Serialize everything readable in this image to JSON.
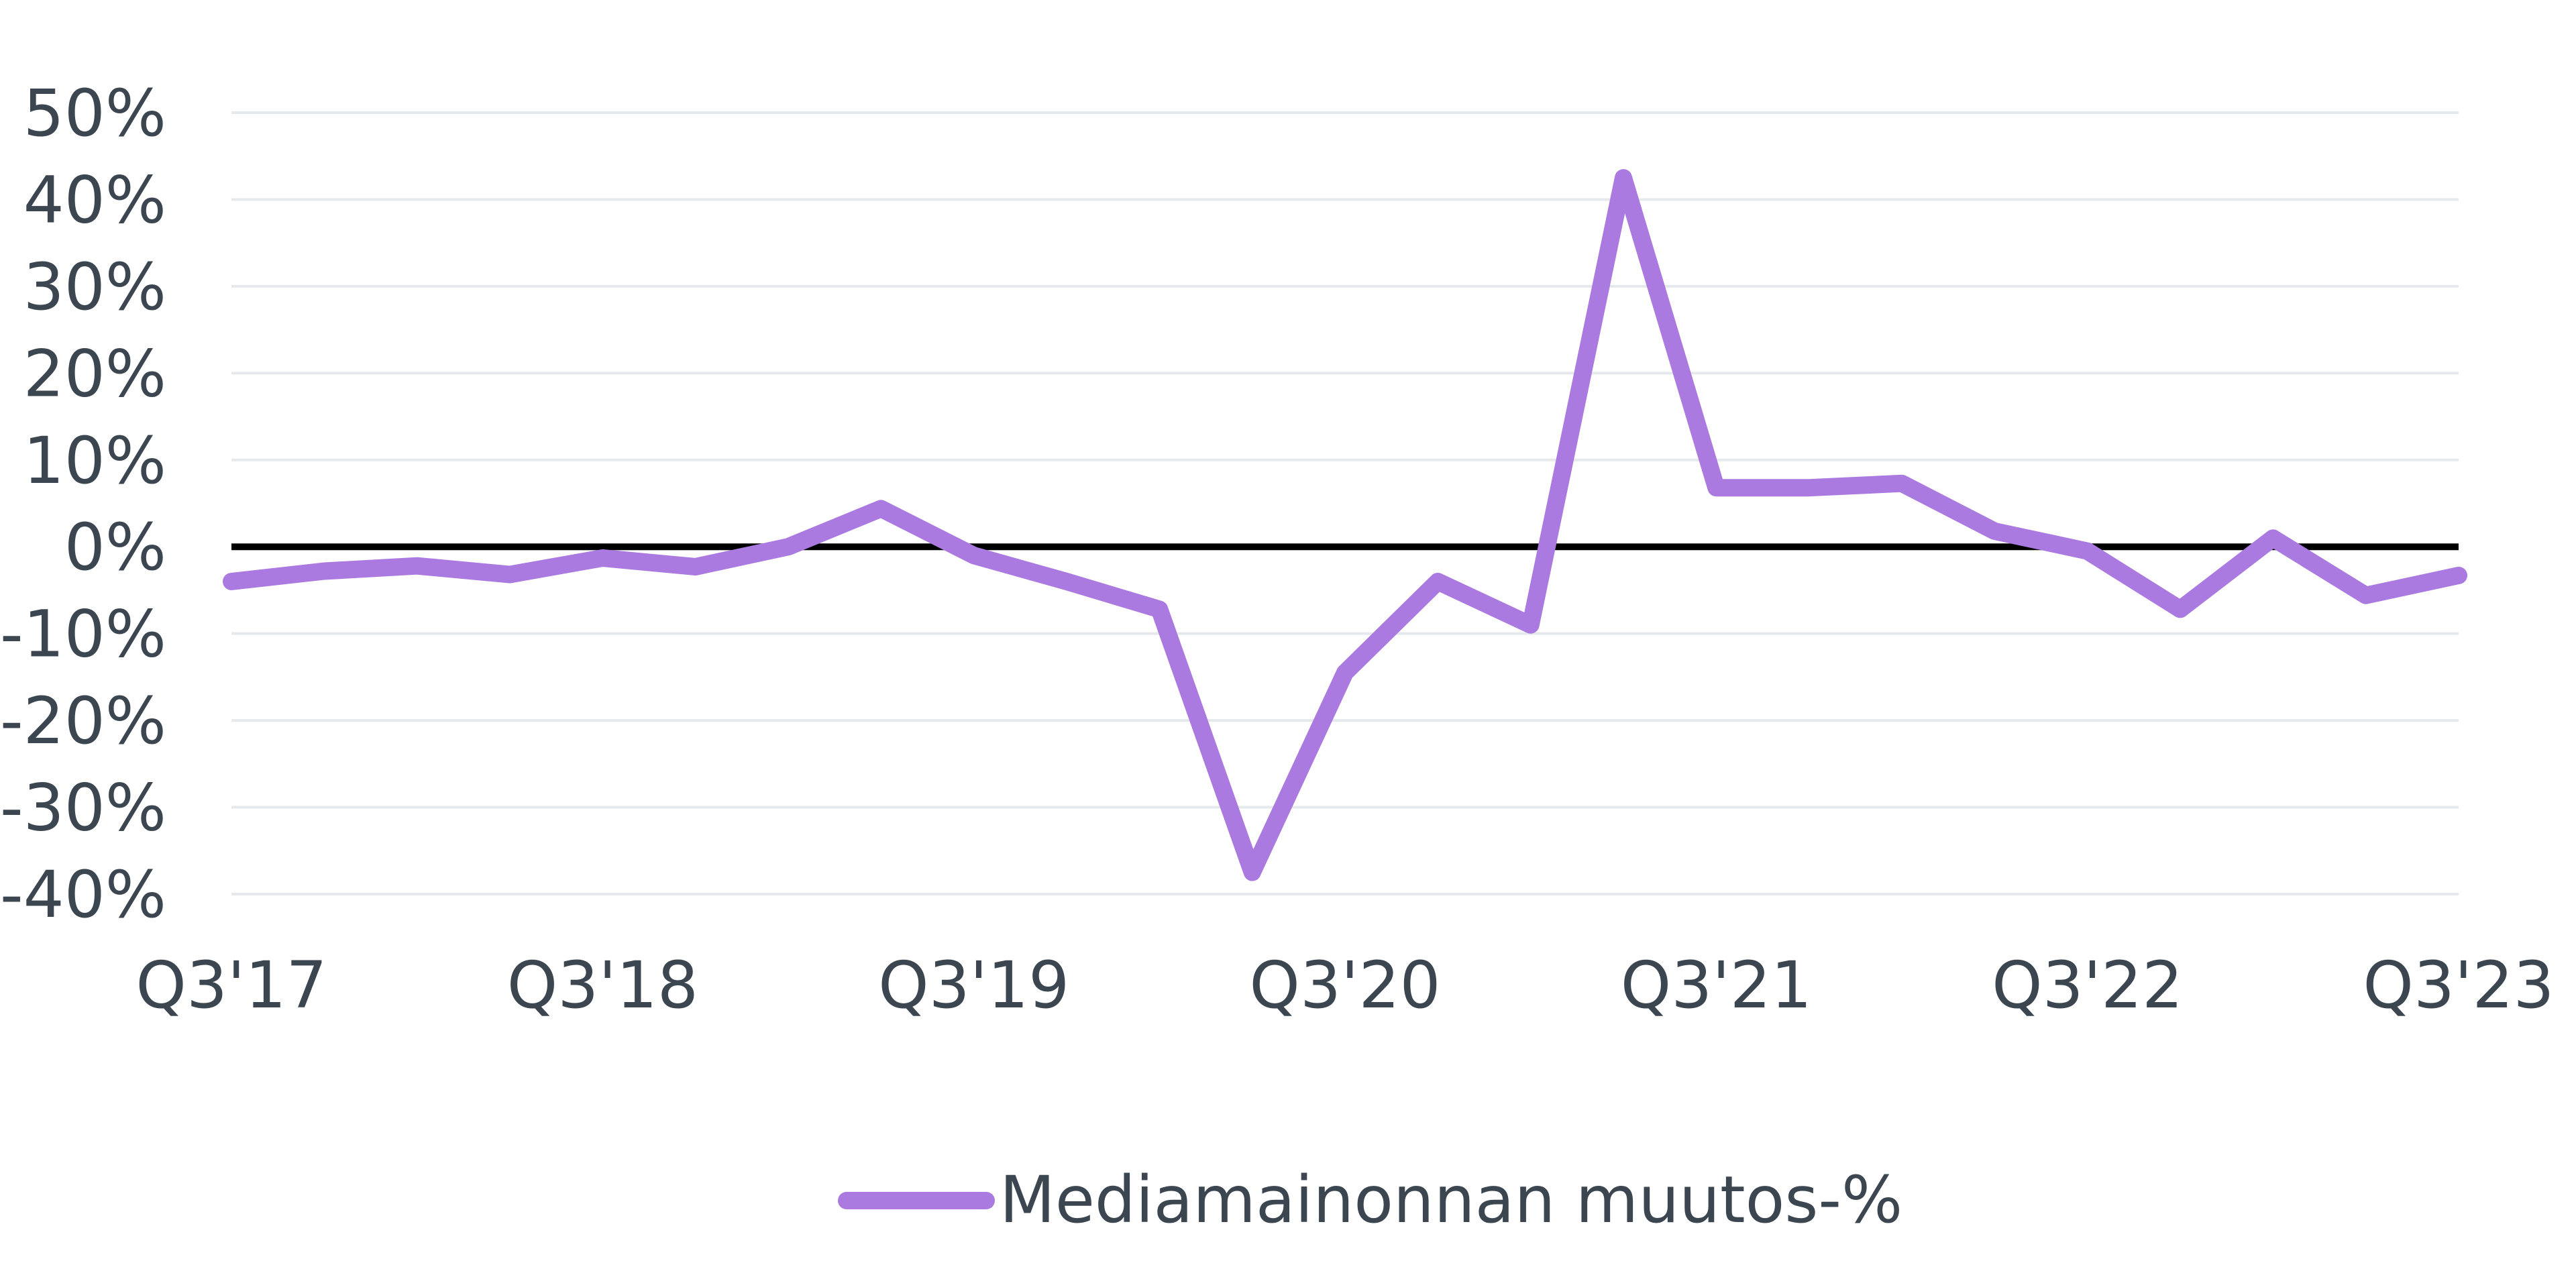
{
  "chart_data": {
    "type": "line",
    "title": "",
    "xlabel": "",
    "ylabel": "",
    "x_tick_labels": [
      "Q3'17",
      "Q3'18",
      "Q3'19",
      "Q3'20",
      "Q3'21",
      "Q3'22",
      "Q3'23"
    ],
    "y_tick_labels": [
      "50%",
      "40%",
      "30%",
      "20%",
      "10%",
      "0%",
      "-10%",
      "-20%",
      "-30%",
      "-40%"
    ],
    "ylim": [
      -40,
      50
    ],
    "y_ticks": [
      50,
      40,
      30,
      20,
      10,
      0,
      -10,
      -20,
      -30,
      -40
    ],
    "grid": true,
    "legend_position": "bottom-center",
    "x": [
      "Q3'17",
      "Q4'17",
      "Q1'18",
      "Q2'18",
      "Q3'18",
      "Q4'18",
      "Q1'19",
      "Q2'19",
      "Q3'19",
      "Q4'19",
      "Q1'20",
      "Q2'20",
      "Q3'20",
      "Q4'20",
      "Q1'21",
      "Q2'21",
      "Q3'21",
      "Q4'21",
      "Q1'22",
      "Q2'22",
      "Q3'22",
      "Q4'22",
      "Q1'23",
      "Q2'23",
      "Q3'23"
    ],
    "series": [
      {
        "name": "Mediamainonnan muutos-%",
        "color": "#ab7ae0",
        "values": [
          -4,
          -2.8,
          -2.2,
          -3.2,
          -1.3,
          -2.3,
          0,
          4.4,
          -1,
          -4,
          -7.2,
          -37.5,
          -14.5,
          -4,
          -9,
          42.5,
          6.8,
          6.8,
          7.3,
          1.8,
          -0.5,
          -7.2,
          1,
          -5.6,
          -3.3
        ]
      }
    ]
  }
}
